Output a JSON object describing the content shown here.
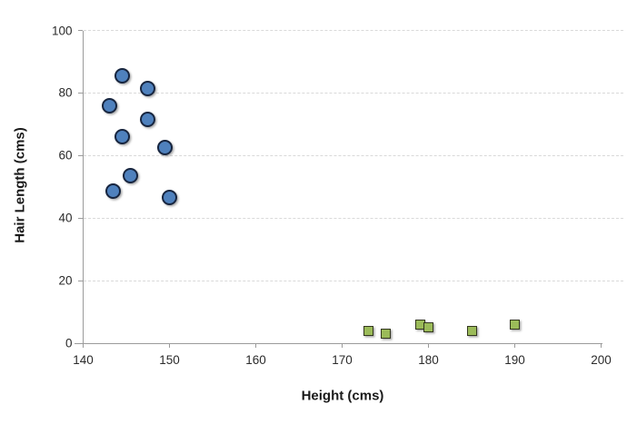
{
  "chart_data": {
    "type": "scatter",
    "title": "",
    "xlabel": "Height (cms)",
    "ylabel": "Hair Length (cms)",
    "xlim": [
      140,
      200
    ],
    "ylim": [
      0,
      100
    ],
    "x_ticks": [
      140,
      150,
      160,
      170,
      180,
      190,
      200
    ],
    "y_ticks": [
      0,
      20,
      40,
      60,
      80,
      100
    ],
    "grid": "horizontal-dashed",
    "legend_position": "none",
    "colors": {
      "circle_fill": "#4f81bd",
      "circle_stroke": "#17253f",
      "square_fill": "#9bbb59",
      "square_stroke": "#33371f",
      "gridline": "#d9d9d9",
      "axis": "#9b9b9b",
      "tick_label": "#2b2b2b",
      "axis_title": "#1a1a1a"
    },
    "series": [
      {
        "marker": "circle",
        "points": [
          [
            144.5,
            85.5
          ],
          [
            147.5,
            81.5
          ],
          [
            143,
            76
          ],
          [
            147.5,
            71.5
          ],
          [
            144.5,
            66
          ],
          [
            149.5,
            62.5
          ],
          [
            145.5,
            53.5
          ],
          [
            143.5,
            48.5
          ],
          [
            150,
            46.5
          ]
        ]
      },
      {
        "marker": "square",
        "points": [
          [
            173,
            4
          ],
          [
            175,
            3
          ],
          [
            179,
            6
          ],
          [
            180,
            5
          ],
          [
            185,
            4
          ],
          [
            190,
            6
          ]
        ]
      }
    ]
  }
}
